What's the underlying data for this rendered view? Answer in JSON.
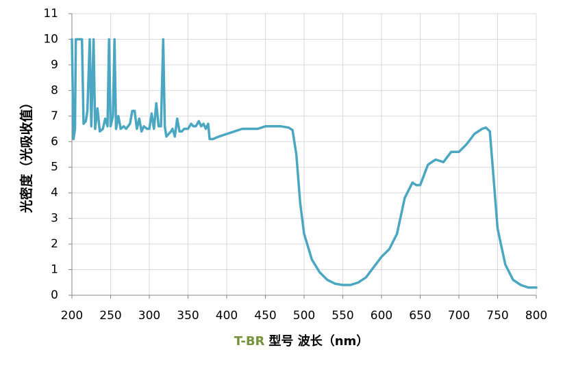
{
  "chart_data": {
    "type": "line",
    "ylabel": "光密度（光吸收值）",
    "xlabel": [
      {
        "text": "T-BR",
        "color": "#76923c"
      },
      {
        "text": "型号  波长（nm）",
        "color": "#000000"
      }
    ],
    "xlim": [
      200,
      800
    ],
    "xticks": [
      200,
      250,
      300,
      350,
      400,
      450,
      500,
      550,
      600,
      650,
      700,
      750,
      800
    ],
    "ylim": [
      0,
      11
    ],
    "yticks": [
      0,
      1,
      2,
      3,
      4,
      5,
      6,
      7,
      8,
      9,
      10,
      11
    ],
    "grid": true,
    "series": [
      {
        "name": "T-BR",
        "color": "#4ba6c2",
        "x": [
          200,
          202,
          204,
          205,
          210,
          213,
          215,
          218,
          220,
          223,
          225,
          228,
          230,
          233,
          236,
          240,
          243,
          246,
          248,
          250,
          253,
          255,
          257,
          260,
          263,
          267,
          270,
          275,
          278,
          281,
          284,
          287,
          290,
          293,
          297,
          300,
          303,
          306,
          309,
          312,
          315,
          318,
          320,
          322,
          325,
          328,
          330,
          333,
          336,
          339,
          342,
          345,
          350,
          354,
          357,
          360,
          364,
          367,
          370,
          373,
          376,
          378,
          382,
          390,
          400,
          410,
          420,
          430,
          440,
          450,
          460,
          470,
          480,
          485,
          490,
          495,
          500,
          510,
          520,
          530,
          540,
          550,
          560,
          570,
          580,
          590,
          600,
          610,
          620,
          630,
          640,
          645,
          650,
          660,
          670,
          680,
          690,
          700,
          710,
          720,
          730,
          735,
          740,
          745,
          750,
          760,
          770,
          780,
          790,
          800
        ],
        "values": [
          10,
          6.1,
          6.5,
          10,
          10,
          10,
          6.7,
          6.8,
          7.2,
          10,
          6.6,
          10,
          6.5,
          7.3,
          6.4,
          6.5,
          6.9,
          6.6,
          10,
          6.6,
          7.0,
          10,
          6.5,
          7.0,
          6.5,
          6.6,
          6.5,
          6.7,
          7.2,
          7.2,
          6.5,
          6.9,
          6.4,
          6.6,
          6.5,
          6.5,
          7.1,
          6.5,
          7.5,
          6.6,
          6.6,
          10,
          6.6,
          6.2,
          6.3,
          6.4,
          6.5,
          6.2,
          6.9,
          6.4,
          6.4,
          6.5,
          6.5,
          6.7,
          6.6,
          6.6,
          6.8,
          6.6,
          6.7,
          6.5,
          6.7,
          6.1,
          6.1,
          6.2,
          6.3,
          6.4,
          6.5,
          6.5,
          6.5,
          6.6,
          6.6,
          6.6,
          6.55,
          6.45,
          5.5,
          3.6,
          2.4,
          1.4,
          0.9,
          0.6,
          0.45,
          0.4,
          0.4,
          0.5,
          0.7,
          1.1,
          1.5,
          1.8,
          2.4,
          3.8,
          4.4,
          4.3,
          4.3,
          5.1,
          5.3,
          5.2,
          5.6,
          5.6,
          5.9,
          6.3,
          6.5,
          6.55,
          6.4,
          4.5,
          2.6,
          1.2,
          0.6,
          0.4,
          0.3,
          0.3
        ]
      }
    ]
  }
}
